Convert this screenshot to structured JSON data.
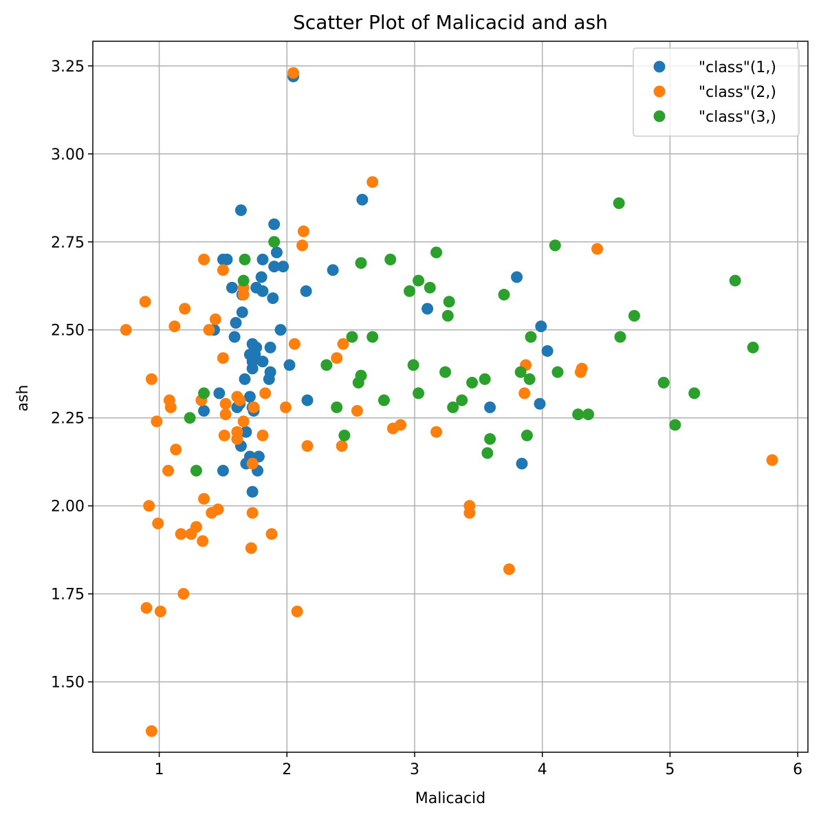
{
  "chart_data": {
    "type": "scatter",
    "title": "Scatter Plot of Malicacid and ash",
    "xlabel": "Malicacid",
    "ylabel": "ash",
    "xlim": [
      0.48,
      6.08
    ],
    "ylim": [
      1.3,
      3.32
    ],
    "xticks": [
      1,
      2,
      3,
      4,
      5,
      6
    ],
    "xtick_labels": [
      "1",
      "2",
      "3",
      "4",
      "5",
      "6"
    ],
    "yticks": [
      1.5,
      1.75,
      2.0,
      2.25,
      2.5,
      2.75,
      3.0,
      3.25
    ],
    "ytick_labels": [
      "1.50",
      "1.75",
      "2.00",
      "2.25",
      "2.50",
      "2.75",
      "3.00",
      "3.25"
    ],
    "grid": true,
    "legend_position": "top-right",
    "series": [
      {
        "name": "\"class\"(1,)",
        "color": "#1f77b4",
        "points": [
          [
            2.05,
            3.22
          ],
          [
            1.64,
            2.84
          ],
          [
            2.59,
            2.87
          ],
          [
            1.9,
            2.8
          ],
          [
            1.5,
            2.7
          ],
          [
            1.53,
            2.7
          ],
          [
            1.92,
            2.72
          ],
          [
            1.9,
            2.68
          ],
          [
            1.97,
            2.68
          ],
          [
            2.36,
            2.67
          ],
          [
            1.81,
            2.7
          ],
          [
            1.57,
            2.62
          ],
          [
            1.76,
            2.62
          ],
          [
            1.8,
            2.65
          ],
          [
            1.81,
            2.61
          ],
          [
            1.65,
            2.6
          ],
          [
            2.15,
            2.61
          ],
          [
            1.89,
            2.59
          ],
          [
            1.65,
            2.55
          ],
          [
            1.6,
            2.52
          ],
          [
            1.95,
            2.5
          ],
          [
            1.43,
            2.5
          ],
          [
            1.59,
            2.48
          ],
          [
            1.73,
            2.46
          ],
          [
            1.76,
            2.45
          ],
          [
            1.87,
            2.45
          ],
          [
            1.71,
            2.43
          ],
          [
            1.75,
            2.43
          ],
          [
            1.73,
            2.41
          ],
          [
            1.81,
            2.41
          ],
          [
            2.02,
            2.4
          ],
          [
            1.73,
            2.39
          ],
          [
            1.87,
            2.38
          ],
          [
            1.67,
            2.36
          ],
          [
            1.86,
            2.36
          ],
          [
            1.47,
            2.32
          ],
          [
            1.71,
            2.31
          ],
          [
            1.63,
            2.29
          ],
          [
            1.61,
            2.28
          ],
          [
            1.73,
            2.28
          ],
          [
            1.35,
            2.27
          ],
          [
            1.74,
            2.27
          ],
          [
            2.16,
            2.3
          ],
          [
            1.68,
            2.21
          ],
          [
            1.64,
            2.17
          ],
          [
            1.71,
            2.14
          ],
          [
            1.78,
            2.14
          ],
          [
            1.68,
            2.12
          ],
          [
            1.77,
            2.1
          ],
          [
            1.5,
            2.1
          ],
          [
            1.73,
            2.04
          ],
          [
            3.1,
            2.56
          ],
          [
            3.8,
            2.65
          ],
          [
            3.99,
            2.51
          ],
          [
            4.04,
            2.44
          ],
          [
            3.59,
            2.28
          ],
          [
            3.98,
            2.29
          ],
          [
            3.84,
            2.12
          ]
        ]
      },
      {
        "name": "\"class\"(2,)",
        "color": "#ff7f0e",
        "points": [
          [
            2.05,
            3.23
          ],
          [
            2.67,
            2.92
          ],
          [
            2.13,
            2.78
          ],
          [
            2.12,
            2.74
          ],
          [
            4.43,
            2.73
          ],
          [
            1.35,
            2.7
          ],
          [
            1.5,
            2.67
          ],
          [
            1.66,
            2.62
          ],
          [
            1.66,
            2.6
          ],
          [
            0.89,
            2.58
          ],
          [
            1.2,
            2.56
          ],
          [
            1.44,
            2.53
          ],
          [
            1.12,
            2.51
          ],
          [
            0.74,
            2.5
          ],
          [
            1.39,
            2.5
          ],
          [
            2.06,
            2.46
          ],
          [
            2.44,
            2.46
          ],
          [
            1.5,
            2.42
          ],
          [
            2.39,
            2.42
          ],
          [
            3.87,
            2.4
          ],
          [
            4.31,
            2.39
          ],
          [
            4.3,
            2.38
          ],
          [
            0.94,
            2.36
          ],
          [
            1.83,
            2.32
          ],
          [
            3.86,
            2.32
          ],
          [
            1.61,
            2.31
          ],
          [
            1.08,
            2.3
          ],
          [
            1.33,
            2.3
          ],
          [
            1.63,
            2.3
          ],
          [
            1.52,
            2.29
          ],
          [
            1.09,
            2.28
          ],
          [
            1.74,
            2.28
          ],
          [
            1.99,
            2.28
          ],
          [
            2.55,
            2.27
          ],
          [
            1.52,
            2.26
          ],
          [
            1.66,
            2.24
          ],
          [
            0.98,
            2.24
          ],
          [
            2.89,
            2.23
          ],
          [
            2.83,
            2.22
          ],
          [
            3.17,
            2.21
          ],
          [
            1.61,
            2.21
          ],
          [
            1.51,
            2.2
          ],
          [
            1.81,
            2.2
          ],
          [
            1.61,
            2.19
          ],
          [
            2.16,
            2.17
          ],
          [
            2.43,
            2.17
          ],
          [
            1.13,
            2.16
          ],
          [
            1.73,
            2.12
          ],
          [
            1.07,
            2.1
          ],
          [
            1.35,
            2.02
          ],
          [
            0.92,
            2.0
          ],
          [
            3.43,
            2.0
          ],
          [
            1.46,
            1.99
          ],
          [
            1.41,
            1.98
          ],
          [
            1.73,
            1.98
          ],
          [
            3.43,
            1.98
          ],
          [
            0.99,
            1.95
          ],
          [
            1.29,
            1.94
          ],
          [
            1.17,
            1.92
          ],
          [
            1.25,
            1.92
          ],
          [
            1.88,
            1.92
          ],
          [
            1.34,
            1.9
          ],
          [
            1.72,
            1.88
          ],
          [
            3.74,
            1.82
          ],
          [
            1.19,
            1.75
          ],
          [
            0.9,
            1.71
          ],
          [
            1.01,
            1.7
          ],
          [
            2.08,
            1.7
          ],
          [
            0.94,
            1.36
          ],
          [
            5.8,
            2.13
          ]
        ]
      },
      {
        "name": "\"class\"(3,)",
        "color": "#2ca02c",
        "points": [
          [
            4.6,
            2.86
          ],
          [
            4.1,
            2.74
          ],
          [
            1.9,
            2.75
          ],
          [
            1.67,
            2.7
          ],
          [
            3.17,
            2.72
          ],
          [
            2.58,
            2.69
          ],
          [
            2.81,
            2.7
          ],
          [
            1.66,
            2.64
          ],
          [
            3.03,
            2.64
          ],
          [
            3.12,
            2.62
          ],
          [
            2.96,
            2.61
          ],
          [
            3.7,
            2.6
          ],
          [
            3.27,
            2.58
          ],
          [
            3.26,
            2.54
          ],
          [
            4.72,
            2.54
          ],
          [
            5.51,
            2.64
          ],
          [
            2.51,
            2.48
          ],
          [
            2.67,
            2.48
          ],
          [
            3.91,
            2.48
          ],
          [
            4.61,
            2.48
          ],
          [
            5.65,
            2.45
          ],
          [
            2.31,
            2.4
          ],
          [
            2.99,
            2.4
          ],
          [
            3.24,
            2.38
          ],
          [
            3.83,
            2.38
          ],
          [
            4.12,
            2.38
          ],
          [
            2.58,
            2.37
          ],
          [
            3.55,
            2.36
          ],
          [
            3.9,
            2.36
          ],
          [
            2.56,
            2.35
          ],
          [
            3.45,
            2.35
          ],
          [
            4.95,
            2.35
          ],
          [
            1.35,
            2.32
          ],
          [
            3.03,
            2.32
          ],
          [
            5.19,
            2.32
          ],
          [
            2.76,
            2.3
          ],
          [
            3.37,
            2.3
          ],
          [
            2.39,
            2.28
          ],
          [
            3.3,
            2.28
          ],
          [
            4.28,
            2.26
          ],
          [
            4.36,
            2.26
          ],
          [
            1.24,
            2.25
          ],
          [
            5.04,
            2.23
          ],
          [
            2.45,
            2.2
          ],
          [
            3.88,
            2.2
          ],
          [
            3.59,
            2.19
          ],
          [
            3.57,
            2.15
          ],
          [
            1.29,
            2.1
          ]
        ]
      }
    ]
  }
}
